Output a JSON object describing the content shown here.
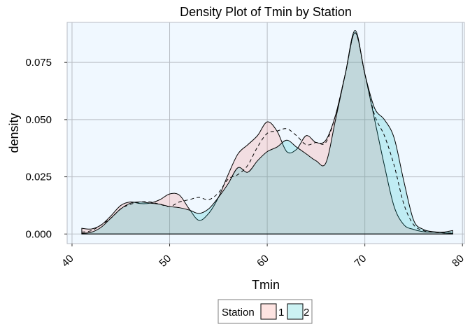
{
  "chart_data": {
    "type": "area",
    "title": "Density Plot of Tmin by Station",
    "xlabel": "Tmin",
    "ylabel": "density",
    "xlim": [
      39.5,
      80.2
    ],
    "ylim": [
      -0.0042,
      0.0925
    ],
    "x_ticks": [
      40,
      50,
      60,
      70,
      80
    ],
    "x_tick_labels": [
      "40",
      "50",
      "60",
      "70",
      "80"
    ],
    "y_ticks": [
      0.0,
      0.025,
      0.05,
      0.075
    ],
    "y_tick_labels": [
      "0.000",
      "0.025",
      "0.050",
      "0.075"
    ],
    "grid": true,
    "legend": {
      "title": "Station",
      "position": "bottom"
    },
    "series": [
      {
        "name": "1",
        "fill": "#F8766D",
        "fill_opacity": 0.2,
        "x": [
          41,
          42,
          43,
          44,
          45,
          46,
          47,
          48,
          49,
          50,
          51,
          52,
          53,
          54,
          55,
          56,
          57,
          58,
          59,
          60,
          61,
          62,
          63,
          64,
          65,
          66,
          67,
          68,
          69,
          70,
          71,
          72,
          73,
          74,
          75,
          76,
          77,
          78,
          79
        ],
        "y": [
          0.0025,
          0.0022,
          0.004,
          0.008,
          0.0125,
          0.014,
          0.0133,
          0.0135,
          0.015,
          0.0175,
          0.017,
          0.011,
          0.006,
          0.009,
          0.016,
          0.026,
          0.035,
          0.039,
          0.043,
          0.049,
          0.045,
          0.036,
          0.037,
          0.043,
          0.04,
          0.041,
          0.052,
          0.07,
          0.088,
          0.07,
          0.05,
          0.03,
          0.012,
          0.004,
          0.002,
          0.001,
          0.0008,
          0.0005,
          0.0003
        ]
      },
      {
        "name": "2",
        "fill": "#00BFC4",
        "fill_opacity": 0.2,
        "x": [
          41,
          42,
          43,
          44,
          45,
          46,
          47,
          48,
          49,
          50,
          51,
          52,
          53,
          54,
          55,
          56,
          57,
          58,
          59,
          60,
          61,
          62,
          63,
          64,
          65,
          66,
          67,
          68,
          69,
          70,
          71,
          72,
          73,
          74,
          75,
          76,
          77,
          78,
          79
        ],
        "y": [
          0.0003,
          0.0008,
          0.003,
          0.007,
          0.011,
          0.0135,
          0.014,
          0.0135,
          0.013,
          0.012,
          0.0115,
          0.0105,
          0.009,
          0.011,
          0.016,
          0.022,
          0.029,
          0.027,
          0.032,
          0.036,
          0.038,
          0.041,
          0.038,
          0.035,
          0.032,
          0.031,
          0.05,
          0.07,
          0.089,
          0.07,
          0.055,
          0.05,
          0.042,
          0.023,
          0.006,
          0.002,
          0.001,
          0.0008,
          0.0015
        ]
      },
      {
        "name": "",
        "style": "dashed",
        "x": [
          41,
          42,
          43,
          44,
          45,
          46,
          47,
          48,
          49,
          50,
          51,
          52,
          53,
          54,
          55,
          56,
          57,
          58,
          59,
          60,
          61,
          62,
          63,
          64,
          65,
          66,
          67,
          68,
          69,
          70,
          71,
          72,
          73,
          74,
          75,
          76,
          77,
          78,
          79
        ],
        "y": [
          0.0008,
          0.0015,
          0.004,
          0.007,
          0.011,
          0.013,
          0.014,
          0.014,
          0.013,
          0.012,
          0.014,
          0.015,
          0.016,
          0.015,
          0.018,
          0.024,
          0.026,
          0.03,
          0.038,
          0.044,
          0.045,
          0.046,
          0.043,
          0.039,
          0.04,
          0.04,
          0.052,
          0.07,
          0.088,
          0.07,
          0.052,
          0.043,
          0.03,
          0.013,
          0.004,
          0.0015,
          0.0008,
          0.0005,
          0.0004
        ]
      }
    ]
  },
  "colors": {
    "panel_background": "#F0F8FF",
    "grid": "#B8BDC4",
    "outline": "#000000"
  }
}
